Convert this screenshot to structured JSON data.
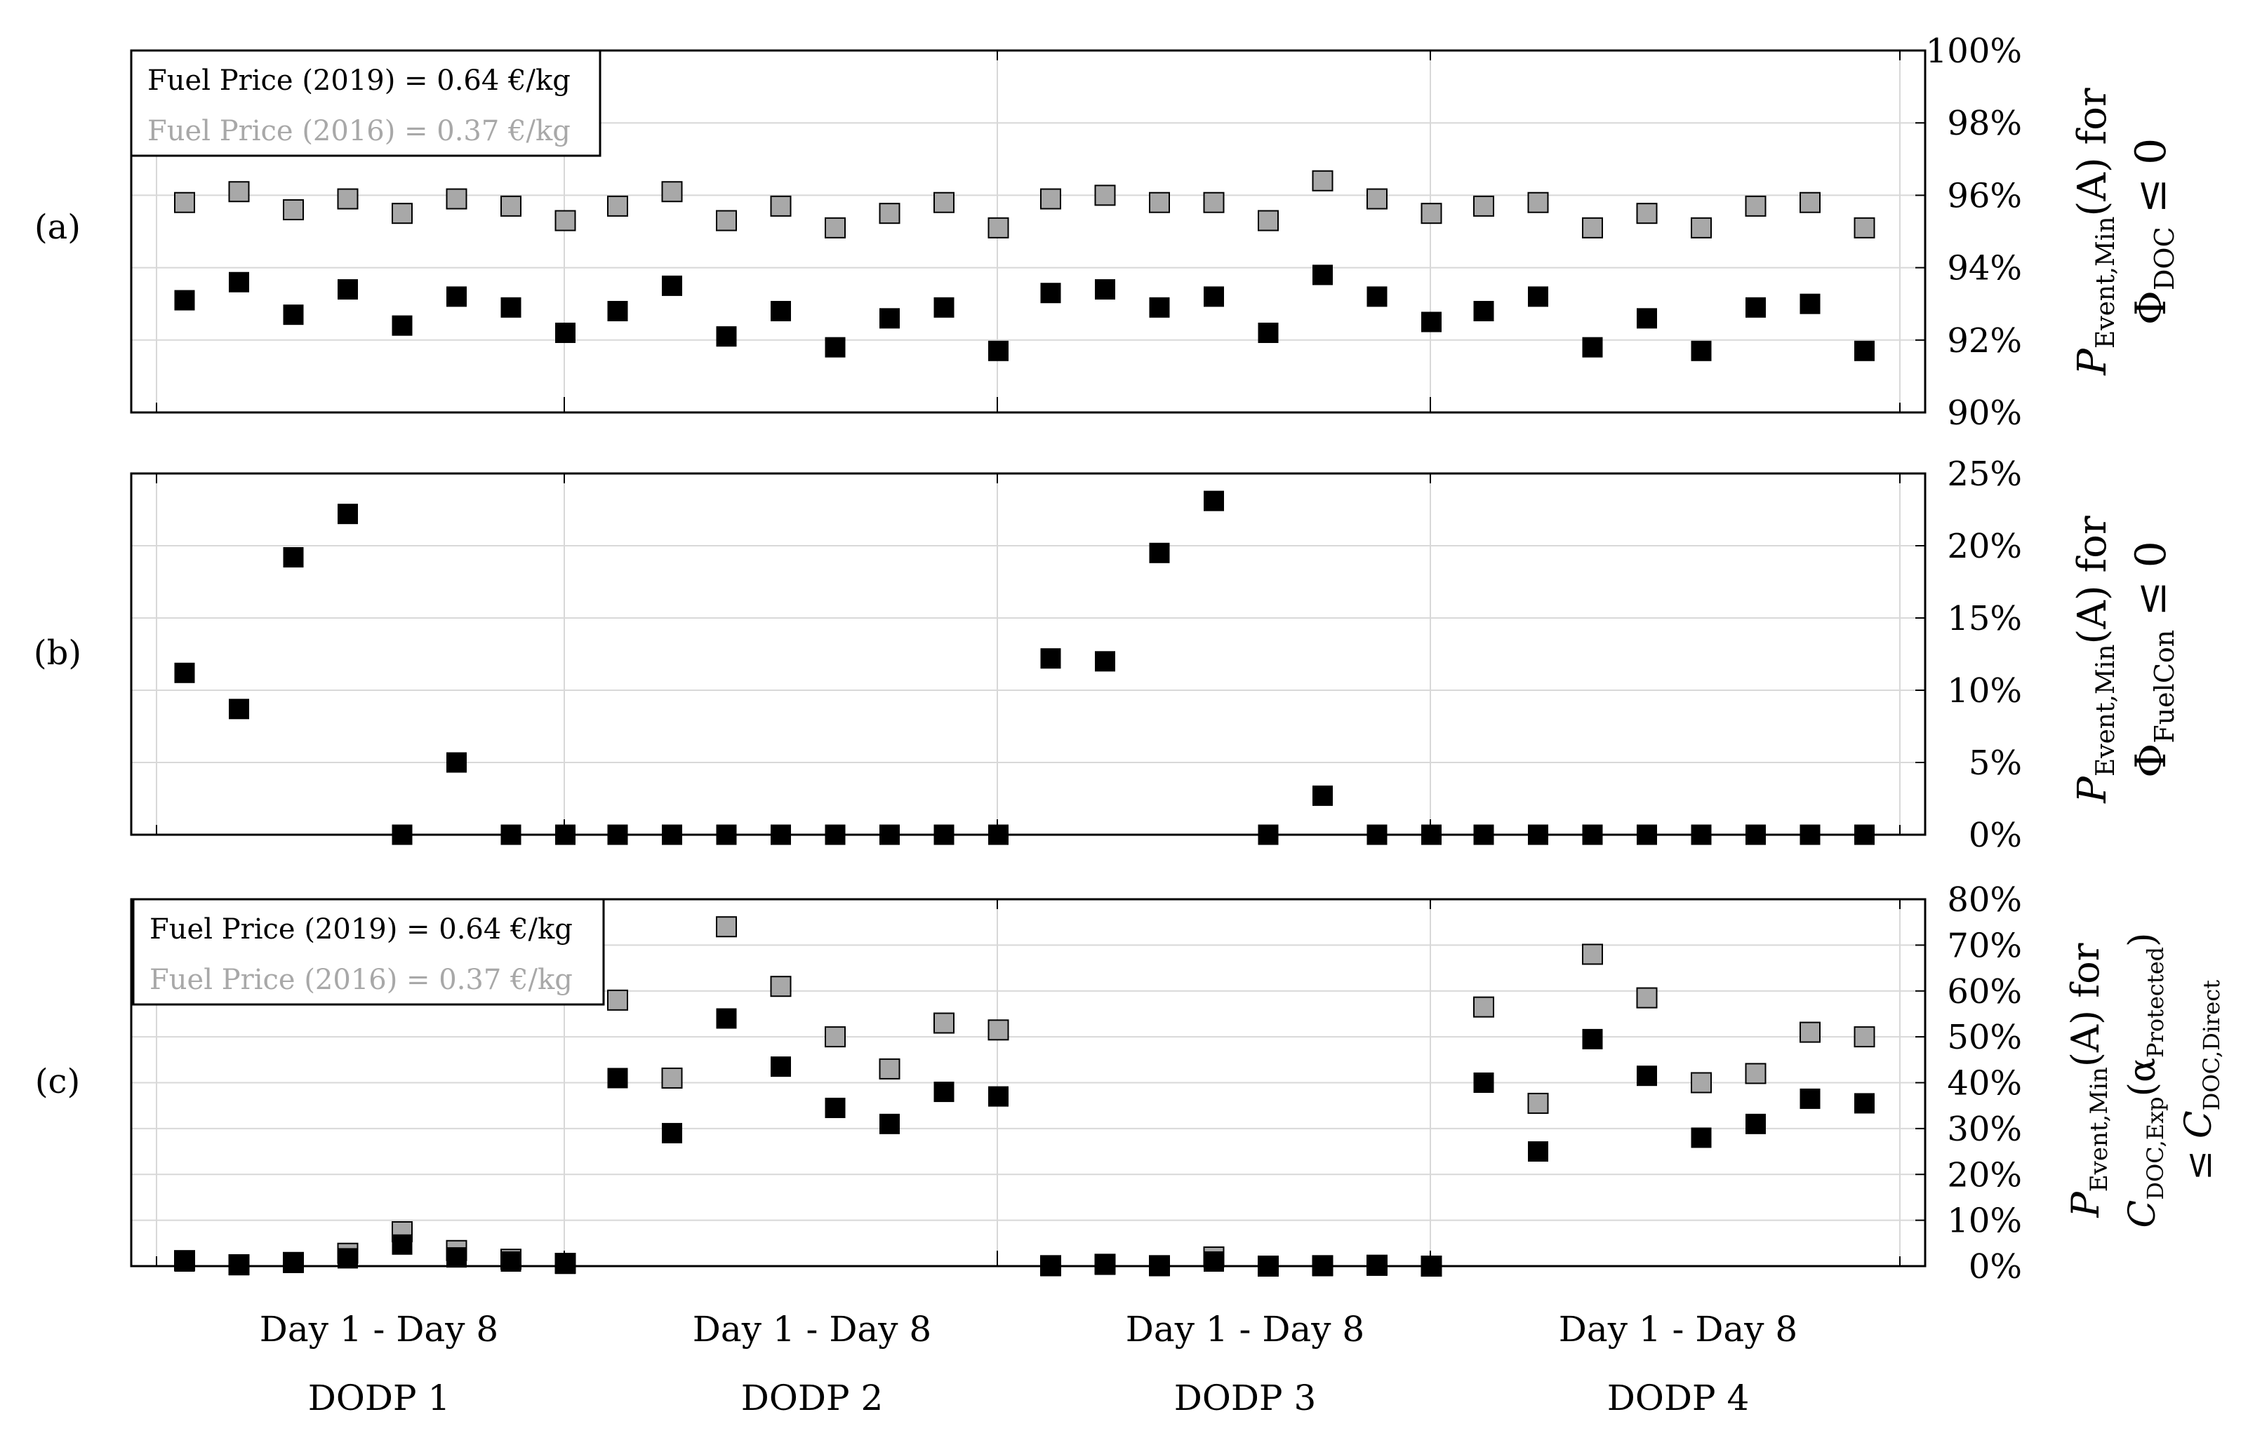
{
  "chart_data": [
    {
      "type": "scatter",
      "panel_label": "(a)",
      "ylabel_main": "P",
      "ylabel_sub": "Event,Min",
      "ylabel_rest": "(A) for",
      "ylabel_line2_main": "Φ",
      "ylabel_line2_sub": "DOC",
      "ylabel_line2_rest": " ≤ 0",
      "ylim": [
        90,
        100
      ],
      "yticks": [
        90,
        92,
        94,
        96,
        98,
        100
      ],
      "ytick_labels": [
        "90%",
        "92%",
        "94%",
        "96%",
        "98%",
        "100%"
      ],
      "legend": [
        "Fuel Price (2019) = 0.64 €/kg",
        "Fuel Price (2016) = 0.37 €/kg"
      ],
      "series": [
        {
          "name": "Fuel Price (2019) = 0.64 €/kg",
          "color": "#000000",
          "values": [
            93.1,
            93.6,
            92.7,
            93.4,
            92.4,
            93.2,
            92.9,
            92.2,
            92.8,
            93.5,
            92.1,
            92.8,
            91.8,
            92.6,
            92.9,
            91.7,
            93.3,
            93.4,
            92.9,
            93.2,
            92.2,
            93.8,
            93.2,
            92.5,
            92.8,
            93.2,
            91.8,
            92.6,
            91.7,
            92.9,
            93.0,
            91.7
          ]
        },
        {
          "name": "Fuel Price (2016) = 0.37 €/kg",
          "color": "#a8a8a8",
          "values": [
            95.8,
            96.1,
            95.6,
            95.9,
            95.5,
            95.9,
            95.7,
            95.3,
            95.7,
            96.1,
            95.3,
            95.7,
            95.1,
            95.5,
            95.8,
            95.1,
            95.9,
            96.0,
            95.8,
            95.8,
            95.3,
            96.4,
            95.9,
            95.5,
            95.7,
            95.8,
            95.1,
            95.5,
            95.1,
            95.7,
            95.8,
            95.1
          ]
        }
      ]
    },
    {
      "type": "scatter",
      "panel_label": "(b)",
      "ylabel_main": "P",
      "ylabel_sub": "Event,Min",
      "ylabel_rest": "(A) for",
      "ylabel_line2_main": "Φ",
      "ylabel_line2_sub": "FuelCon",
      "ylabel_line2_rest": " ≤ 0",
      "ylim": [
        0,
        25
      ],
      "yticks": [
        0,
        5,
        10,
        15,
        20,
        25
      ],
      "ytick_labels": [
        "0%",
        "5%",
        "10%",
        "15%",
        "20%",
        "25%"
      ],
      "series": [
        {
          "name": "Fuel Price (2019) = 0.64 €/kg",
          "color": "#000000",
          "values": [
            11.2,
            8.7,
            19.2,
            22.2,
            0,
            5.0,
            0,
            0,
            0,
            0,
            0,
            0,
            0,
            0,
            0,
            0,
            12.2,
            12.0,
            19.5,
            23.1,
            0,
            2.7,
            0,
            0,
            0,
            0,
            0,
            0,
            0,
            0,
            0,
            0
          ]
        }
      ]
    },
    {
      "type": "scatter",
      "panel_label": "(c)",
      "ylabel_main": "P",
      "ylabel_sub": "Event,Min",
      "ylabel_rest": "(A) for",
      "ylabel_line2_main": "C",
      "ylabel_line2_sub": "DOC,Exp",
      "ylabel_line2_rest": "(α",
      "ylabel_line2_sub2": "Protected",
      "ylabel_line2_end": ")",
      "ylabel_line3_main": "≤ C",
      "ylabel_line3_sub": "DOC,Direct",
      "ylim": [
        0,
        80
      ],
      "yticks": [
        0,
        10,
        20,
        30,
        40,
        50,
        60,
        70,
        80
      ],
      "ytick_labels": [
        "0%",
        "10%",
        "20%",
        "30%",
        "40%",
        "50%",
        "60%",
        "70%",
        "80%"
      ],
      "legend": [
        "Fuel Price (2019) = 0.64 €/kg",
        "Fuel Price (2016) = 0.37 €/kg"
      ],
      "series": [
        {
          "name": "Fuel Price (2019) = 0.64 €/kg",
          "color": "#000000",
          "values": [
            1.0,
            0.2,
            0.7,
            1.7,
            4.7,
            1.9,
            1.0,
            0.5,
            41.0,
            29.0,
            54.0,
            43.5,
            34.5,
            31.0,
            38.0,
            37.0,
            0,
            0.3,
            0,
            1.0,
            0,
            0,
            0.1,
            0,
            40.0,
            25.0,
            49.5,
            41.5,
            28.0,
            31.0,
            36.5,
            35.5
          ]
        },
        {
          "name": "Fuel Price (2016) = 0.37 €/kg",
          "color": "#a8a8a8",
          "values": [
            1.2,
            0.3,
            0.8,
            2.8,
            7.5,
            3.4,
            1.5,
            0.6,
            58.0,
            41.0,
            74.0,
            61.0,
            50.0,
            43.0,
            53.0,
            51.5,
            0.1,
            0.4,
            0.1,
            2.0,
            0,
            0.1,
            0.2,
            0,
            56.5,
            35.5,
            68.0,
            58.5,
            40.0,
            42.0,
            51.0,
            50.0
          ]
        }
      ]
    }
  ],
  "x_axis": {
    "groups": [
      {
        "range_label": "Day 1 - Day 8",
        "group_label": "DODP 1"
      },
      {
        "range_label": "Day 1 - Day 8",
        "group_label": "DODP 2"
      },
      {
        "range_label": "Day 1 - Day 8",
        "group_label": "DODP 3"
      },
      {
        "range_label": "Day 1 - Day 8",
        "group_label": "DODP 4"
      }
    ],
    "points_per_group": 8
  },
  "colors": {
    "series_2019": "#000000",
    "series_2016": "#a8a8a8",
    "grid": "#d8d8d8",
    "axis": "#000000"
  }
}
